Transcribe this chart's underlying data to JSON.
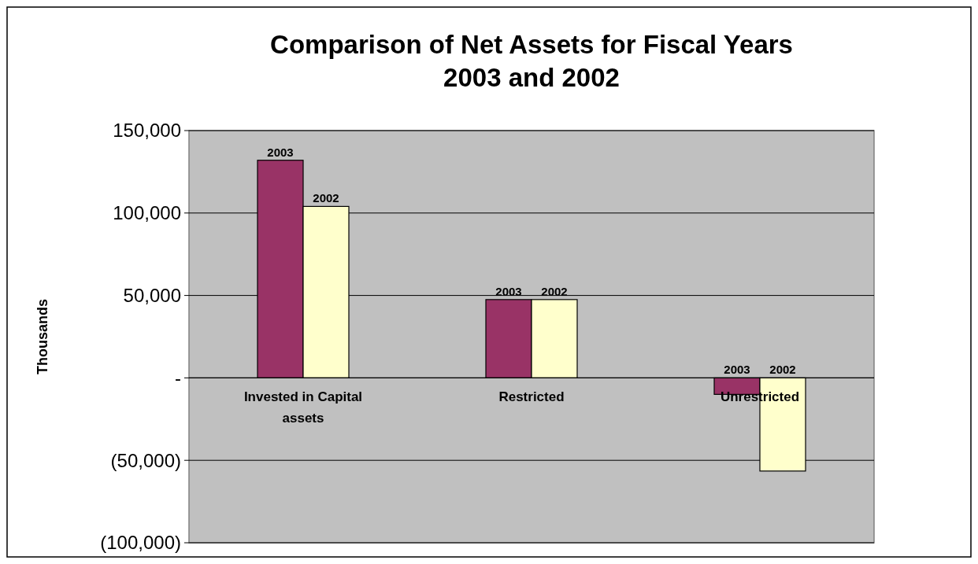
{
  "chart_data": {
    "type": "bar",
    "title": "Comparison of Net Assets for Fiscal Years 2003 and 2002",
    "ylabel": "Thousands",
    "categories": [
      "Invested in Capital assets",
      "Restricted",
      "Unrestricted"
    ],
    "series": [
      {
        "name": "2003",
        "color": "#993366",
        "values": [
          132000,
          47500,
          -10000
        ]
      },
      {
        "name": "2002",
        "color": "#ffffcc",
        "values": [
          104000,
          47500,
          -56500
        ]
      }
    ],
    "ylim": [
      -100000,
      150000
    ],
    "yticks": [
      {
        "value": -100000,
        "label": "(100,000)"
      },
      {
        "value": -50000,
        "label": "(50,000)"
      },
      {
        "value": 0,
        "label": "-"
      },
      {
        "value": 50000,
        "label": "50,000"
      },
      {
        "value": 100000,
        "label": "100,000"
      },
      {
        "value": 150000,
        "label": "150,000"
      }
    ],
    "grid": "y"
  }
}
